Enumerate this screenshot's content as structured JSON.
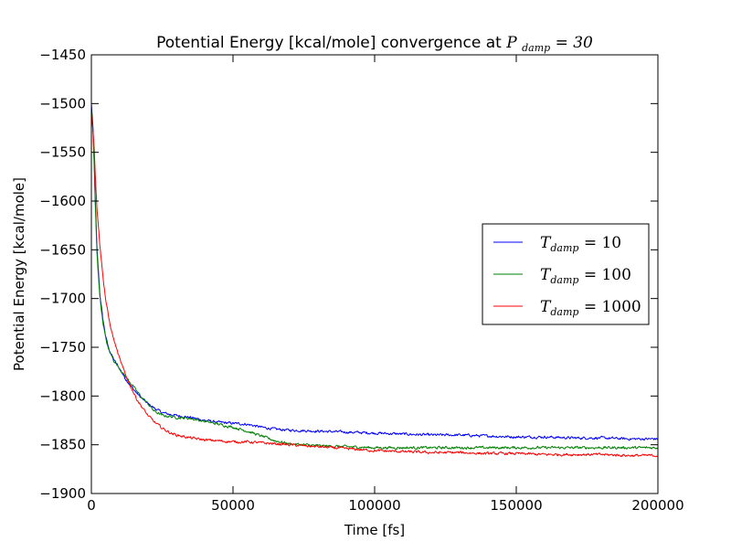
{
  "chart_data": {
    "type": "line",
    "title": {
      "prefix": "Potential Energy [kcal/mole] convergence at",
      "math_symbol": "P",
      "math_subscript": "damp",
      "math_tail": " = 30"
    },
    "xlabel": "Time [fs]",
    "ylabel": "Potential Energy [kcal/mole]",
    "xlim": [
      0,
      200000
    ],
    "ylim": [
      -1900,
      -1450
    ],
    "xticks": [
      0,
      50000,
      100000,
      150000,
      200000
    ],
    "xtick_labels": [
      "0",
      "50000",
      "100000",
      "150000",
      "200000"
    ],
    "yticks": [
      -1900,
      -1850,
      -1800,
      -1750,
      -1700,
      -1650,
      -1600,
      -1550,
      -1500,
      -1450
    ],
    "ytick_labels": [
      "−1900",
      "−1850",
      "−1800",
      "−1750",
      "−1700",
      "−1650",
      "−1600",
      "−1550",
      "−1500",
      "−1450"
    ],
    "grid": false,
    "legend_position": "right",
    "series": [
      {
        "name": "T_damp = 10",
        "label_symbol": "T",
        "label_subscript": "damp",
        "label_tail": " = 10",
        "color": "#0000ff",
        "x": [
          0,
          500,
          1000,
          1500,
          2000,
          3000,
          4000,
          5000,
          6000,
          7000,
          8000,
          10000,
          12000,
          14000,
          16000,
          18000,
          20000,
          22000,
          25000,
          28000,
          30000,
          35000,
          40000,
          45000,
          50000,
          55000,
          60000,
          65000,
          70000,
          80000,
          90000,
          100000,
          110000,
          120000,
          130000,
          140000,
          150000,
          160000,
          170000,
          180000,
          190000,
          200000
        ],
        "y": [
          -1500,
          -1520,
          -1560,
          -1610,
          -1650,
          -1695,
          -1720,
          -1738,
          -1750,
          -1757,
          -1763,
          -1772,
          -1782,
          -1790,
          -1797,
          -1803,
          -1808,
          -1812,
          -1817,
          -1819,
          -1820,
          -1822,
          -1825,
          -1827,
          -1828,
          -1829,
          -1832,
          -1834,
          -1835,
          -1836,
          -1837,
          -1838,
          -1839,
          -1840,
          -1840,
          -1841,
          -1842,
          -1842,
          -1843,
          -1843,
          -1844,
          -1844
        ]
      },
      {
        "name": "T_damp = 100",
        "label_symbol": "T",
        "label_subscript": "damp",
        "label_tail": " = 100",
        "color": "#008000",
        "x": [
          0,
          500,
          1000,
          1500,
          2000,
          3000,
          4000,
          5000,
          6000,
          7000,
          8000,
          10000,
          12000,
          14000,
          16000,
          18000,
          20000,
          22000,
          25000,
          28000,
          30000,
          35000,
          40000,
          45000,
          50000,
          55000,
          60000,
          65000,
          70000,
          80000,
          90000,
          100000,
          110000,
          120000,
          130000,
          140000,
          150000,
          160000,
          170000,
          180000,
          190000,
          200000
        ],
        "y": [
          -1505,
          -1525,
          -1565,
          -1615,
          -1655,
          -1698,
          -1723,
          -1740,
          -1752,
          -1758,
          -1764,
          -1772,
          -1780,
          -1787,
          -1795,
          -1802,
          -1808,
          -1815,
          -1820,
          -1821,
          -1822,
          -1823,
          -1826,
          -1829,
          -1832,
          -1836,
          -1841,
          -1846,
          -1849,
          -1851,
          -1852,
          -1853,
          -1853,
          -1853,
          -1853,
          -1853,
          -1853,
          -1853,
          -1853,
          -1853,
          -1853,
          -1853
        ]
      },
      {
        "name": "T_damp = 1000",
        "label_symbol": "T",
        "label_subscript": "damp",
        "label_tail": " = 1000",
        "color": "#ff0000",
        "x": [
          0,
          500,
          1000,
          1500,
          2000,
          2500,
          3000,
          4000,
          5000,
          6000,
          7000,
          8000,
          10000,
          12000,
          14000,
          16000,
          18000,
          20000,
          22000,
          25000,
          28000,
          30000,
          35000,
          40000,
          45000,
          50000,
          55000,
          60000,
          65000,
          70000,
          80000,
          90000,
          100000,
          110000,
          120000,
          130000,
          140000,
          150000,
          160000,
          170000,
          180000,
          190000,
          200000
        ],
        "y": [
          -1510,
          -1525,
          -1545,
          -1580,
          -1610,
          -1625,
          -1645,
          -1675,
          -1700,
          -1718,
          -1732,
          -1743,
          -1762,
          -1778,
          -1791,
          -1803,
          -1812,
          -1820,
          -1826,
          -1833,
          -1838,
          -1840,
          -1843,
          -1845,
          -1846,
          -1847,
          -1847,
          -1848,
          -1849,
          -1850,
          -1852,
          -1854,
          -1856,
          -1857,
          -1858,
          -1858,
          -1859,
          -1859,
          -1860,
          -1860,
          -1860,
          -1861,
          -1861
        ]
      }
    ]
  }
}
